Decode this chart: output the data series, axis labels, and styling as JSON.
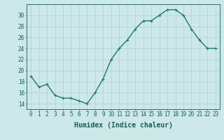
{
  "x": [
    0,
    1,
    2,
    3,
    4,
    5,
    6,
    7,
    8,
    9,
    10,
    11,
    12,
    13,
    14,
    15,
    16,
    17,
    18,
    19,
    20,
    21,
    22,
    23
  ],
  "y": [
    19.0,
    17.0,
    17.5,
    15.5,
    15.0,
    15.0,
    14.5,
    14.0,
    16.0,
    18.5,
    22.0,
    24.0,
    25.5,
    27.5,
    29.0,
    29.0,
    30.0,
    31.0,
    31.0,
    30.0,
    27.5,
    25.5,
    24.0,
    24.0
  ],
  "line_color": "#1a7a6e",
  "marker": "+",
  "background_color": "#cce8e8",
  "grid_color": "#aacccc",
  "xlabel": "Humidex (Indice chaleur)",
  "ylim": [
    13,
    32
  ],
  "xlim": [
    -0.5,
    23.5
  ],
  "yticks": [
    14,
    16,
    18,
    20,
    22,
    24,
    26,
    28,
    30
  ],
  "xticks": [
    0,
    1,
    2,
    3,
    4,
    5,
    6,
    7,
    8,
    9,
    10,
    11,
    12,
    13,
    14,
    15,
    16,
    17,
    18,
    19,
    20,
    21,
    22,
    23
  ],
  "xtick_labels": [
    "0",
    "1",
    "2",
    "3",
    "4",
    "5",
    "6",
    "7",
    "8",
    "9",
    "10",
    "11",
    "12",
    "13",
    "14",
    "15",
    "16",
    "17",
    "18",
    "19",
    "20",
    "21",
    "22",
    "23"
  ],
  "font_color": "#1a5c5c",
  "axis_color": "#1a5c5c",
  "tick_color": "#1a5c5c",
  "linewidth": 1.0,
  "markersize": 3,
  "xlabel_fontsize": 7,
  "tick_fontsize": 5.5
}
